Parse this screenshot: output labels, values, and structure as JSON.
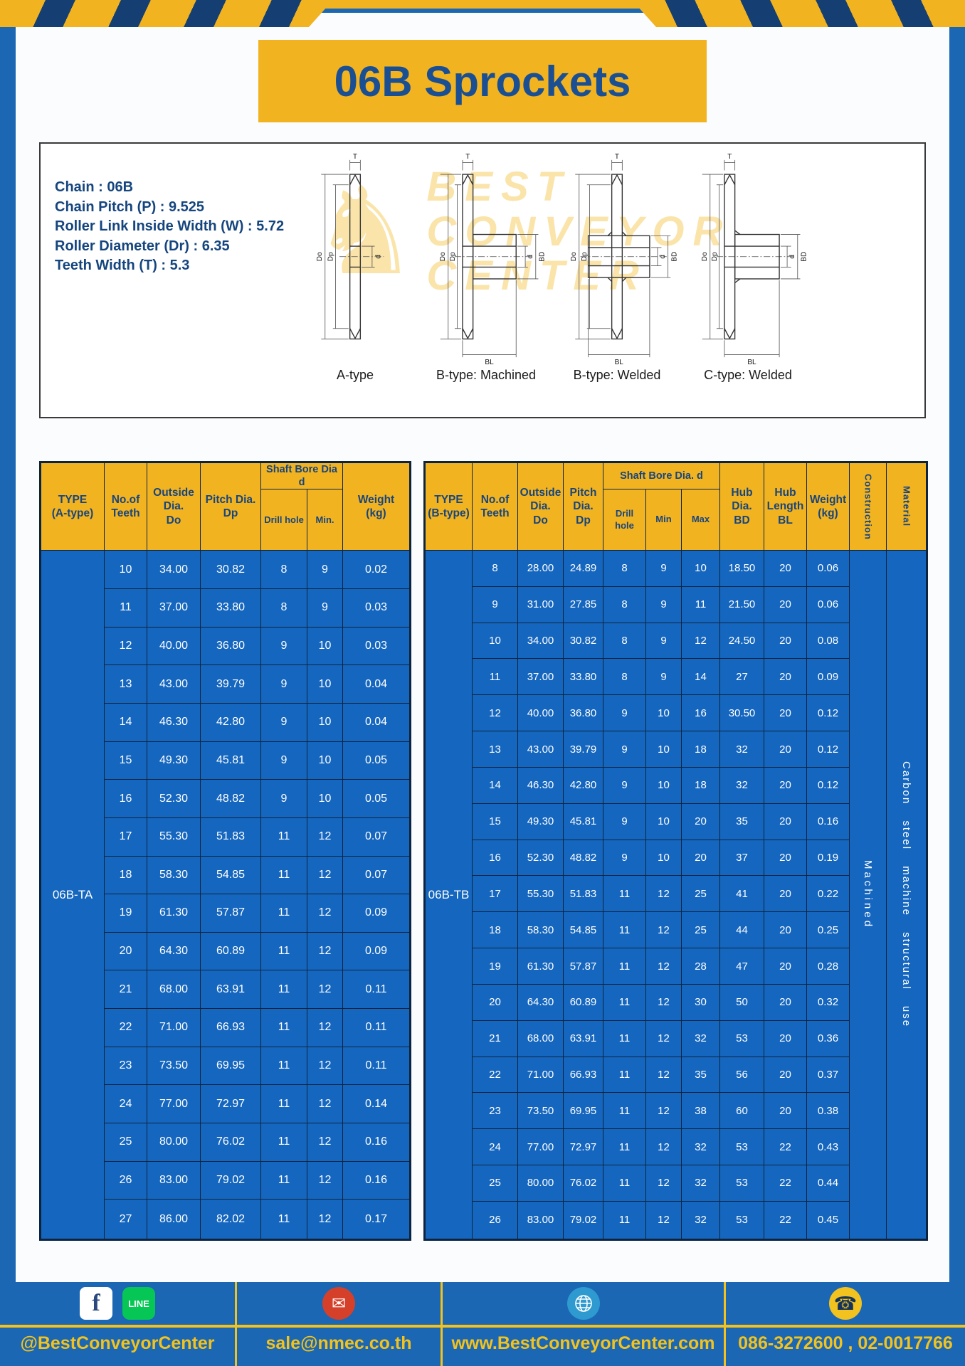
{
  "page": {
    "title": "06B Sprockets"
  },
  "specs": {
    "lines": [
      "Chain : 06B",
      "Chain Pitch (P) : 9.525",
      "Roller Link Inside Width (W) : 5.72",
      "Roller Diameter (Dr) : 6.35",
      "Teeth Width (T) : 5.3"
    ]
  },
  "drawings": {
    "dims": {
      "T": "T",
      "Do": "Do",
      "Dp": "Dp",
      "d": "d",
      "BD": "BD",
      "BL": "BL"
    },
    "items": [
      {
        "label": "A-type"
      },
      {
        "label": "B-type: Machined"
      },
      {
        "label": "B-type: Welded"
      },
      {
        "label": "C-type: Welded"
      }
    ],
    "watermark": {
      "logo_glyph": "♞",
      "lines": [
        "BEST",
        "CONVEYOR",
        "CENTER"
      ]
    }
  },
  "table_a": {
    "headers": {
      "type": "TYPE\n(A-type)",
      "teeth": "No.of\nTeeth",
      "outside": "Outside\nDia.\nDo",
      "pitch": "Pitch Dia.\nDp",
      "shaft_group": "Shaft Bore Dia d",
      "drill": "Drill hole",
      "min": "Min.",
      "weight": "Weight\n(kg)"
    },
    "type_label": "06B-TA",
    "rows": [
      [
        "10",
        "34.00",
        "30.82",
        "8",
        "9",
        "0.02"
      ],
      [
        "11",
        "37.00",
        "33.80",
        "8",
        "9",
        "0.03"
      ],
      [
        "12",
        "40.00",
        "36.80",
        "9",
        "10",
        "0.03"
      ],
      [
        "13",
        "43.00",
        "39.79",
        "9",
        "10",
        "0.04"
      ],
      [
        "14",
        "46.30",
        "42.80",
        "9",
        "10",
        "0.04"
      ],
      [
        "15",
        "49.30",
        "45.81",
        "9",
        "10",
        "0.05"
      ],
      [
        "16",
        "52.30",
        "48.82",
        "9",
        "10",
        "0.05"
      ],
      [
        "17",
        "55.30",
        "51.83",
        "11",
        "12",
        "0.07"
      ],
      [
        "18",
        "58.30",
        "54.85",
        "11",
        "12",
        "0.07"
      ],
      [
        "19",
        "61.30",
        "57.87",
        "11",
        "12",
        "0.09"
      ],
      [
        "20",
        "64.30",
        "60.89",
        "11",
        "12",
        "0.09"
      ],
      [
        "21",
        "68.00",
        "63.91",
        "11",
        "12",
        "0.11"
      ],
      [
        "22",
        "71.00",
        "66.93",
        "11",
        "12",
        "0.11"
      ],
      [
        "23",
        "73.50",
        "69.95",
        "11",
        "12",
        "0.11"
      ],
      [
        "24",
        "77.00",
        "72.97",
        "11",
        "12",
        "0.14"
      ],
      [
        "25",
        "80.00",
        "76.02",
        "11",
        "12",
        "0.16"
      ],
      [
        "26",
        "83.00",
        "79.02",
        "11",
        "12",
        "0.16"
      ],
      [
        "27",
        "86.00",
        "82.02",
        "11",
        "12",
        "0.17"
      ]
    ]
  },
  "table_b": {
    "headers": {
      "type": "TYPE\n(B-type)",
      "teeth": "No.of\nTeeth",
      "outside": "Outside\nDia.\nDo",
      "pitch": "Pitch\nDia.\nDp",
      "shaft_group": "Shaft Bore Dia.  d",
      "drill": "Drill hole",
      "min": "Min",
      "max": "Max",
      "hub_dia": "Hub\nDia.\nBD",
      "hub_len": "Hub\nLength\nBL",
      "weight": "Weight\n(kg)",
      "construction": "Construction",
      "material": "Material"
    },
    "type_label": "06B-TB",
    "construction": "Machined",
    "material": "Carbon steel machine structural use",
    "rows": [
      [
        "8",
        "28.00",
        "24.89",
        "8",
        "9",
        "10",
        "18.50",
        "20",
        "0.06"
      ],
      [
        "9",
        "31.00",
        "27.85",
        "8",
        "9",
        "11",
        "21.50",
        "20",
        "0.06"
      ],
      [
        "10",
        "34.00",
        "30.82",
        "8",
        "9",
        "12",
        "24.50",
        "20",
        "0.08"
      ],
      [
        "11",
        "37.00",
        "33.80",
        "8",
        "9",
        "14",
        "27",
        "20",
        "0.09"
      ],
      [
        "12",
        "40.00",
        "36.80",
        "9",
        "10",
        "16",
        "30.50",
        "20",
        "0.12"
      ],
      [
        "13",
        "43.00",
        "39.79",
        "9",
        "10",
        "18",
        "32",
        "20",
        "0.12"
      ],
      [
        "14",
        "46.30",
        "42.80",
        "9",
        "10",
        "18",
        "32",
        "20",
        "0.12"
      ],
      [
        "15",
        "49.30",
        "45.81",
        "9",
        "10",
        "20",
        "35",
        "20",
        "0.16"
      ],
      [
        "16",
        "52.30",
        "48.82",
        "9",
        "10",
        "20",
        "37",
        "20",
        "0.19"
      ],
      [
        "17",
        "55.30",
        "51.83",
        "11",
        "12",
        "25",
        "41",
        "20",
        "0.22"
      ],
      [
        "18",
        "58.30",
        "54.85",
        "11",
        "12",
        "25",
        "44",
        "20",
        "0.25"
      ],
      [
        "19",
        "61.30",
        "57.87",
        "11",
        "12",
        "28",
        "47",
        "20",
        "0.28"
      ],
      [
        "20",
        "64.30",
        "60.89",
        "11",
        "12",
        "30",
        "50",
        "20",
        "0.32"
      ],
      [
        "21",
        "68.00",
        "63.91",
        "11",
        "12",
        "32",
        "53",
        "20",
        "0.36"
      ],
      [
        "22",
        "71.00",
        "66.93",
        "11",
        "12",
        "35",
        "56",
        "20",
        "0.37"
      ],
      [
        "23",
        "73.50",
        "69.95",
        "11",
        "12",
        "38",
        "60",
        "20",
        "0.38"
      ],
      [
        "24",
        "77.00",
        "72.97",
        "11",
        "12",
        "32",
        "53",
        "22",
        "0.43"
      ],
      [
        "25",
        "80.00",
        "76.02",
        "11",
        "12",
        "32",
        "53",
        "22",
        "0.44"
      ],
      [
        "26",
        "83.00",
        "79.02",
        "11",
        "12",
        "32",
        "53",
        "22",
        "0.45"
      ]
    ]
  },
  "footer": {
    "facebook_handle": "@BestConveyorCenter",
    "email": "sale@nmec.co.th",
    "website": "www.BestConveyorCenter.com",
    "phones": "086-3272600 , 02-0017766",
    "fb_glyph": "f",
    "line_label": "LINE",
    "mail_glyph": "✉",
    "phone_glyph": "☎"
  }
}
